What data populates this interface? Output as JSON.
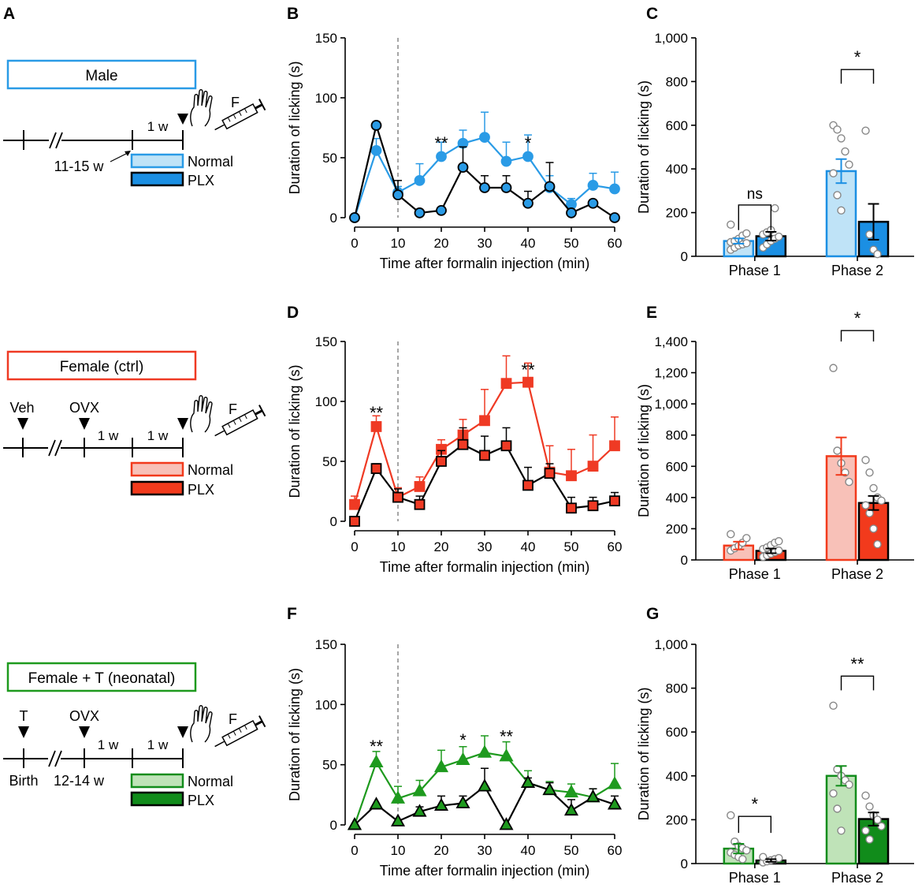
{
  "colors": {
    "male_light": "#bfe3f7",
    "male_dark": "#1b8fe3",
    "male_line": "#2a9be6",
    "female_light": "#f8c1b8",
    "female_dark": "#f23a1c",
    "female_line": "#ef3a24",
    "t_light": "#bfe3b8",
    "t_dark": "#118c1b",
    "t_line": "#1e9a1e",
    "black": "#000000",
    "gray": "#888888"
  },
  "panel_letters": {
    "A": "A",
    "B": "B",
    "C": "C",
    "D": "D",
    "E": "E",
    "F": "F",
    "G": "G"
  },
  "schematic": {
    "male": {
      "title": "Male",
      "interval": "1 w",
      "age": "11-15 w",
      "f": "F",
      "normal": "Normal",
      "plx": "PLX"
    },
    "female": {
      "title": "Female (ctrl)",
      "veh": "Veh",
      "ovx": "OVX",
      "interval1": "1 w",
      "interval2": "1 w",
      "f": "F",
      "normal": "Normal",
      "plx": "PLX"
    },
    "female_t": {
      "title": "Female + T (neonatal)",
      "t": "T",
      "ovx": "OVX",
      "interval1": "1 w",
      "interval2": "1 w",
      "birth": "Birth",
      "age": "12-14 w",
      "f": "F",
      "normal": "Normal",
      "plx": "PLX"
    }
  },
  "chart_data": [
    {
      "id": "B",
      "type": "line",
      "xlabel": "Time after formalin injection (min)",
      "ylabel": "Duration of licking (s)",
      "ylim": [
        0,
        150
      ],
      "yticks": [
        0,
        50,
        100,
        150
      ],
      "xlim": [
        0,
        60
      ],
      "xticks": [
        0,
        10,
        20,
        30,
        40,
        50,
        60
      ],
      "vline": 10,
      "marker": "circle",
      "x": [
        0,
        5,
        10,
        15,
        20,
        25,
        30,
        35,
        40,
        45,
        50,
        55,
        60
      ],
      "series": [
        {
          "name": "Normal",
          "color": "#2a9be6",
          "values": [
            0,
            56,
            21,
            31,
            51,
            62,
            67,
            47,
            51,
            25,
            11,
            27,
            24
          ],
          "err": [
            0,
            10,
            5,
            14,
            12,
            11,
            21,
            16,
            18,
            10,
            5,
            10,
            14
          ]
        },
        {
          "name": "PLX",
          "color": "#000000",
          "fill": "#2a9be6",
          "values": [
            0,
            77,
            19,
            4,
            6,
            42,
            25,
            25,
            12,
            26,
            4,
            12,
            0
          ],
          "err": [
            0,
            3,
            12,
            0,
            0,
            17,
            10,
            10,
            10,
            20,
            0,
            0,
            0
          ]
        }
      ],
      "annotations": [
        {
          "x": 20,
          "text": "**",
          "y": 60
        },
        {
          "x": 40,
          "text": "*",
          "y": 60
        }
      ]
    },
    {
      "id": "C",
      "type": "bar",
      "ylabel": "Duration of licking (s)",
      "categories": [
        "Phase 1",
        "Phase 2"
      ],
      "ylim": [
        0,
        1000
      ],
      "yticks": [
        0,
        200,
        400,
        600,
        800,
        1000
      ],
      "yticklabels": [
        "0",
        "200",
        "400",
        "600",
        "800",
        "1,000"
      ],
      "series": [
        {
          "name": "Normal",
          "fill": "#bfe3f7",
          "stroke": "#1b8fe3",
          "values": [
            70,
            390
          ],
          "err": [
            12,
            55
          ],
          "points": [
            [
              30,
              40,
              50,
              55,
              60,
              65,
              70,
              80,
              95,
              105,
              145
            ],
            [
              600,
              580,
              540,
              480,
              420,
              380,
              280,
              210
            ]
          ]
        },
        {
          "name": "PLX",
          "fill": "#1b8fe3",
          "stroke": "#000000",
          "values": [
            92,
            158
          ],
          "err": [
            20,
            82
          ],
          "points": [
            [
              40,
              55,
              70,
              80,
              90,
              100,
              110,
              120,
              220
            ],
            [
              575,
              100,
              30,
              10
            ]
          ]
        }
      ],
      "sig": [
        {
          "text": "ns",
          "y": 235,
          "yb": 120
        },
        {
          "text": "*",
          "y": 855,
          "yb": 790
        }
      ]
    },
    {
      "id": "D",
      "type": "line",
      "xlabel": "Time after formalin injection (min)",
      "ylabel": "Duration of licking (s)",
      "ylim": [
        0,
        150
      ],
      "yticks": [
        0,
        50,
        100,
        150
      ],
      "xlim": [
        0,
        60
      ],
      "xticks": [
        0,
        10,
        20,
        30,
        40,
        50,
        60
      ],
      "vline": 10,
      "marker": "square",
      "x": [
        0,
        5,
        10,
        15,
        20,
        25,
        30,
        35,
        40,
        45,
        50,
        55,
        60
      ],
      "series": [
        {
          "name": "Normal",
          "color": "#ef3a24",
          "values": [
            14,
            79,
            20,
            29,
            60,
            72,
            84,
            115,
            116,
            41,
            38,
            46,
            63
          ],
          "err": [
            7,
            9,
            8,
            8,
            8,
            13,
            26,
            23,
            16,
            22,
            22,
            26,
            24
          ]
        },
        {
          "name": "PLX",
          "color": "#000000",
          "fill": "#ef3a24",
          "values": [
            0,
            44,
            20,
            14,
            50,
            64,
            55,
            63,
            30,
            40,
            11,
            13,
            17
          ],
          "err": [
            0,
            4,
            7,
            7,
            9,
            14,
            16,
            15,
            15,
            8,
            9,
            7,
            7
          ]
        }
      ],
      "annotations": [
        {
          "x": 5,
          "text": "**",
          "y": 88
        },
        {
          "x": 40,
          "text": "**",
          "y": 124
        }
      ]
    },
    {
      "id": "E",
      "type": "bar",
      "ylabel": "Duration of licking (s)",
      "categories": [
        "Phase 1",
        "Phase 2"
      ],
      "ylim": [
        0,
        1400
      ],
      "yticks": [
        0,
        200,
        400,
        600,
        800,
        1000,
        1200,
        1400
      ],
      "yticklabels": [
        "0",
        "200",
        "400",
        "600",
        "800",
        "1,000",
        "1,200",
        "1,400"
      ],
      "series": [
        {
          "name": "Normal",
          "fill": "#f8c1b8",
          "stroke": "#f23a1c",
          "values": [
            92,
            665
          ],
          "err": [
            25,
            120
          ],
          "points": [
            [
              60,
              75,
              90,
              110,
              140,
              165
            ],
            [
              1230,
              700,
              620,
              560,
              500
            ]
          ]
        },
        {
          "name": "PLX",
          "fill": "#f23a1c",
          "stroke": "#000000",
          "values": [
            58,
            365
          ],
          "err": [
            15,
            45
          ],
          "points": [
            [
              20,
              30,
              40,
              50,
              60,
              70,
              80,
              95,
              110,
              120
            ],
            [
              640,
              560,
              460,
              400,
              380,
              350,
              300,
              200,
              100
            ]
          ]
        }
      ],
      "sig": [
        {
          "text": "*",
          "y": 1470,
          "yb": 1400
        }
      ]
    },
    {
      "id": "F",
      "type": "line",
      "xlabel": "Time after formalin injection (min)",
      "ylabel": "Duration of licking (s)",
      "ylim": [
        0,
        150
      ],
      "yticks": [
        0,
        50,
        100,
        150
      ],
      "xlim": [
        0,
        60
      ],
      "xticks": [
        0,
        10,
        20,
        30,
        40,
        50,
        60
      ],
      "vline": 10,
      "marker": "triangle",
      "x": [
        0,
        5,
        10,
        15,
        20,
        25,
        30,
        35,
        40,
        45,
        50,
        55,
        60
      ],
      "series": [
        {
          "name": "Normal",
          "color": "#1e9a1e",
          "values": [
            0,
            52,
            22,
            28,
            48,
            54,
            60,
            57,
            35,
            29,
            27,
            23,
            34
          ],
          "err": [
            0,
            9,
            10,
            9,
            14,
            11,
            14,
            12,
            10,
            7,
            7,
            7,
            17
          ]
        },
        {
          "name": "PLX",
          "color": "#000000",
          "fill": "#1e9a1e",
          "values": [
            0,
            17,
            3,
            11,
            16,
            18,
            32,
            0,
            35,
            29,
            12,
            23,
            17
          ],
          "err": [
            0,
            0,
            0,
            4,
            8,
            6,
            15,
            0,
            4,
            6,
            9,
            7,
            7
          ]
        }
      ],
      "annotations": [
        {
          "x": 5,
          "text": "**",
          "y": 63
        },
        {
          "x": 25,
          "text": "*",
          "y": 68
        },
        {
          "x": 35,
          "text": "**",
          "y": 71
        }
      ]
    },
    {
      "id": "G",
      "type": "bar",
      "ylabel": "Duration of licking (s)",
      "categories": [
        "Phase 1",
        "Phase 2"
      ],
      "ylim": [
        0,
        1000
      ],
      "yticks": [
        0,
        200,
        400,
        600,
        800,
        1000
      ],
      "yticklabels": [
        "0",
        "200",
        "400",
        "600",
        "800",
        "1,000"
      ],
      "series": [
        {
          "name": "Normal",
          "fill": "#bfe3b8",
          "stroke": "#118c1b",
          "values": [
            68,
            400
          ],
          "err": [
            22,
            45
          ],
          "points": [
            [
              220,
              100,
              80,
              70,
              60,
              50,
              40,
              30,
              20
            ],
            [
              720,
              430,
              400,
              380,
              360,
              320,
              250,
              150
            ]
          ]
        },
        {
          "name": "PLX",
          "fill": "#118c1b",
          "stroke": "#000000",
          "values": [
            14,
            203
          ],
          "err": [
            6,
            30
          ],
          "points": [
            [
              5,
              10,
              15,
              20,
              25,
              30
            ],
            [
              310,
              260,
              220,
              200,
              170,
              150,
              110
            ]
          ]
        }
      ],
      "sig": [
        {
          "text": "*",
          "y": 215,
          "yb": 140
        },
        {
          "text": "**",
          "y": 855,
          "yb": 790
        }
      ]
    }
  ]
}
